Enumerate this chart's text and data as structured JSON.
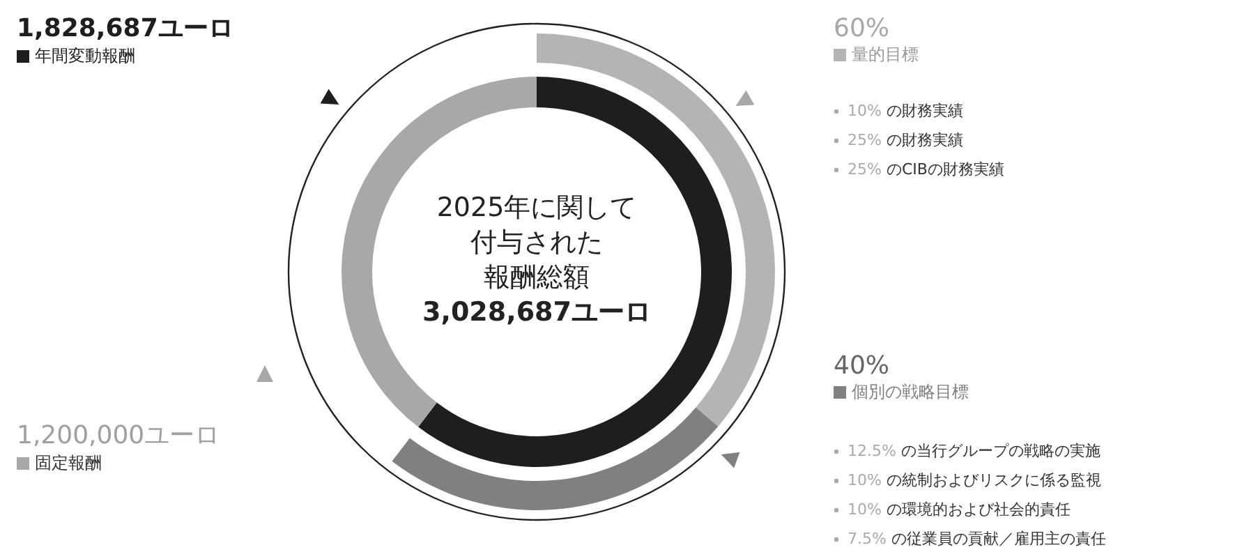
{
  "chart_data": [
    {
      "type": "donut",
      "annotations": [
        "2025年に関して",
        "付与された",
        "報酬総額",
        "3,028,687ユーロ"
      ],
      "categories": [
        "年間変動報酬",
        "固定報酬"
      ],
      "values": [
        1828687,
        1200000
      ],
      "colors": [
        "#1e1e1e",
        "#a8a8a8"
      ],
      "value_labels": [
        "1,828,687ユーロ",
        "1,200,000ユーロ"
      ],
      "legend": "left"
    },
    {
      "type": "donut",
      "categories": [
        "量的目標",
        "個別の戦略目標"
      ],
      "values": [
        60,
        40
      ],
      "colors": [
        "#b4b4b4",
        "#808080"
      ],
      "value_labels": [
        "60%",
        "40%"
      ],
      "legend": "right",
      "annotations": [
        [
          "10% の財務実績",
          "25% の財務実績",
          "25% のCIBの財務実績"
        ],
        [
          "12.5% の当行グループの戦略の実施",
          "10% の統制およびリスクに係る監視",
          "10% の環境的および社会的責任",
          "7.5% の従業員の貢献／雇用主の責任"
        ]
      ]
    }
  ]
}
